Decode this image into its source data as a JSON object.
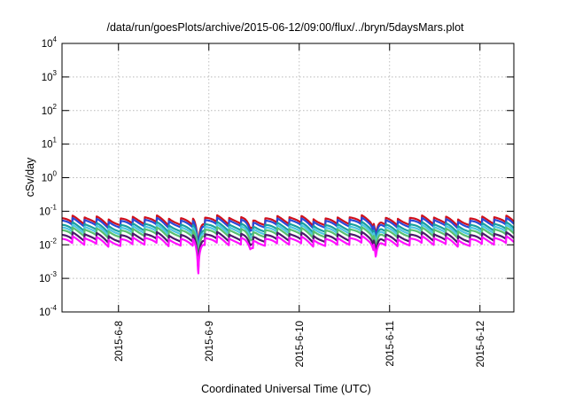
{
  "chart_data": {
    "type": "line",
    "title": "/data/run/goesPlots/archive/2015-06-12/09:00/flux/../bryn/5daysMars.plot",
    "xlabel": "Coordinated Universal Time (UTC)",
    "ylabel": "cSv/day",
    "yscale": "log",
    "ylim": [
      0.0001,
      10000
    ],
    "y_ticks": [
      {
        "base": "10",
        "exp": "-4"
      },
      {
        "base": "10",
        "exp": "-3"
      },
      {
        "base": "10",
        "exp": "-2"
      },
      {
        "base": "10",
        "exp": "-1"
      },
      {
        "base": "10",
        "exp": "0"
      },
      {
        "base": "10",
        "exp": "1"
      },
      {
        "base": "10",
        "exp": "2"
      },
      {
        "base": "10",
        "exp": "3"
      },
      {
        "base": "10",
        "exp": "4"
      }
    ],
    "xlim": [
      "2015-06-07 09:00",
      "2015-06-12 09:00"
    ],
    "x_ticks": [
      "2015-6-8",
      "2015-6-9",
      "2015-6-10",
      "2015-6-11",
      "2015-6-12"
    ],
    "grid": true,
    "legend": "none",
    "series_colors": [
      "#d0101c",
      "#2b48d8",
      "#1a9f9f",
      "#4cc7e4",
      "#58c070",
      "#4a1a6a",
      "#ff10ff"
    ],
    "base_levels": [
      0.066,
      0.056,
      0.042,
      0.035,
      0.029,
      0.021,
      0.016
    ],
    "cycle_hours": 3.2,
    "cycle_drop_factor": 0.62,
    "dips": [
      {
        "x": "2015-06-08 21:10",
        "min_factor": 0.08
      },
      {
        "x": "2015-06-09 11:00",
        "min_factor": 0.7
      },
      {
        "x": "2015-06-10 20:20",
        "min_factor": 0.3
      }
    ]
  }
}
